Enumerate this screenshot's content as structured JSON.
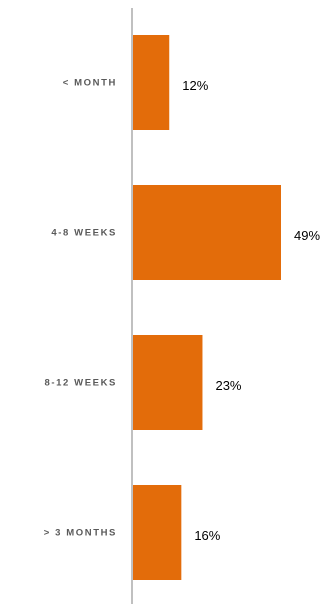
{
  "chart_data": {
    "type": "bar",
    "orientation": "horizontal",
    "categories": [
      "< MONTH",
      "4-8 WEEKS",
      "8-12 WEEKS",
      "> 3 MONTHS"
    ],
    "values": [
      12,
      49,
      23,
      16
    ],
    "value_labels": [
      "12%",
      "49%",
      "23%",
      "16%"
    ],
    "xlim": [
      0,
      50
    ],
    "grid": false,
    "legend": "none",
    "colors": {
      "bar": "#E36C0A",
      "axis": "#808080",
      "category_text": "#595959",
      "value_text": "#000000"
    }
  }
}
